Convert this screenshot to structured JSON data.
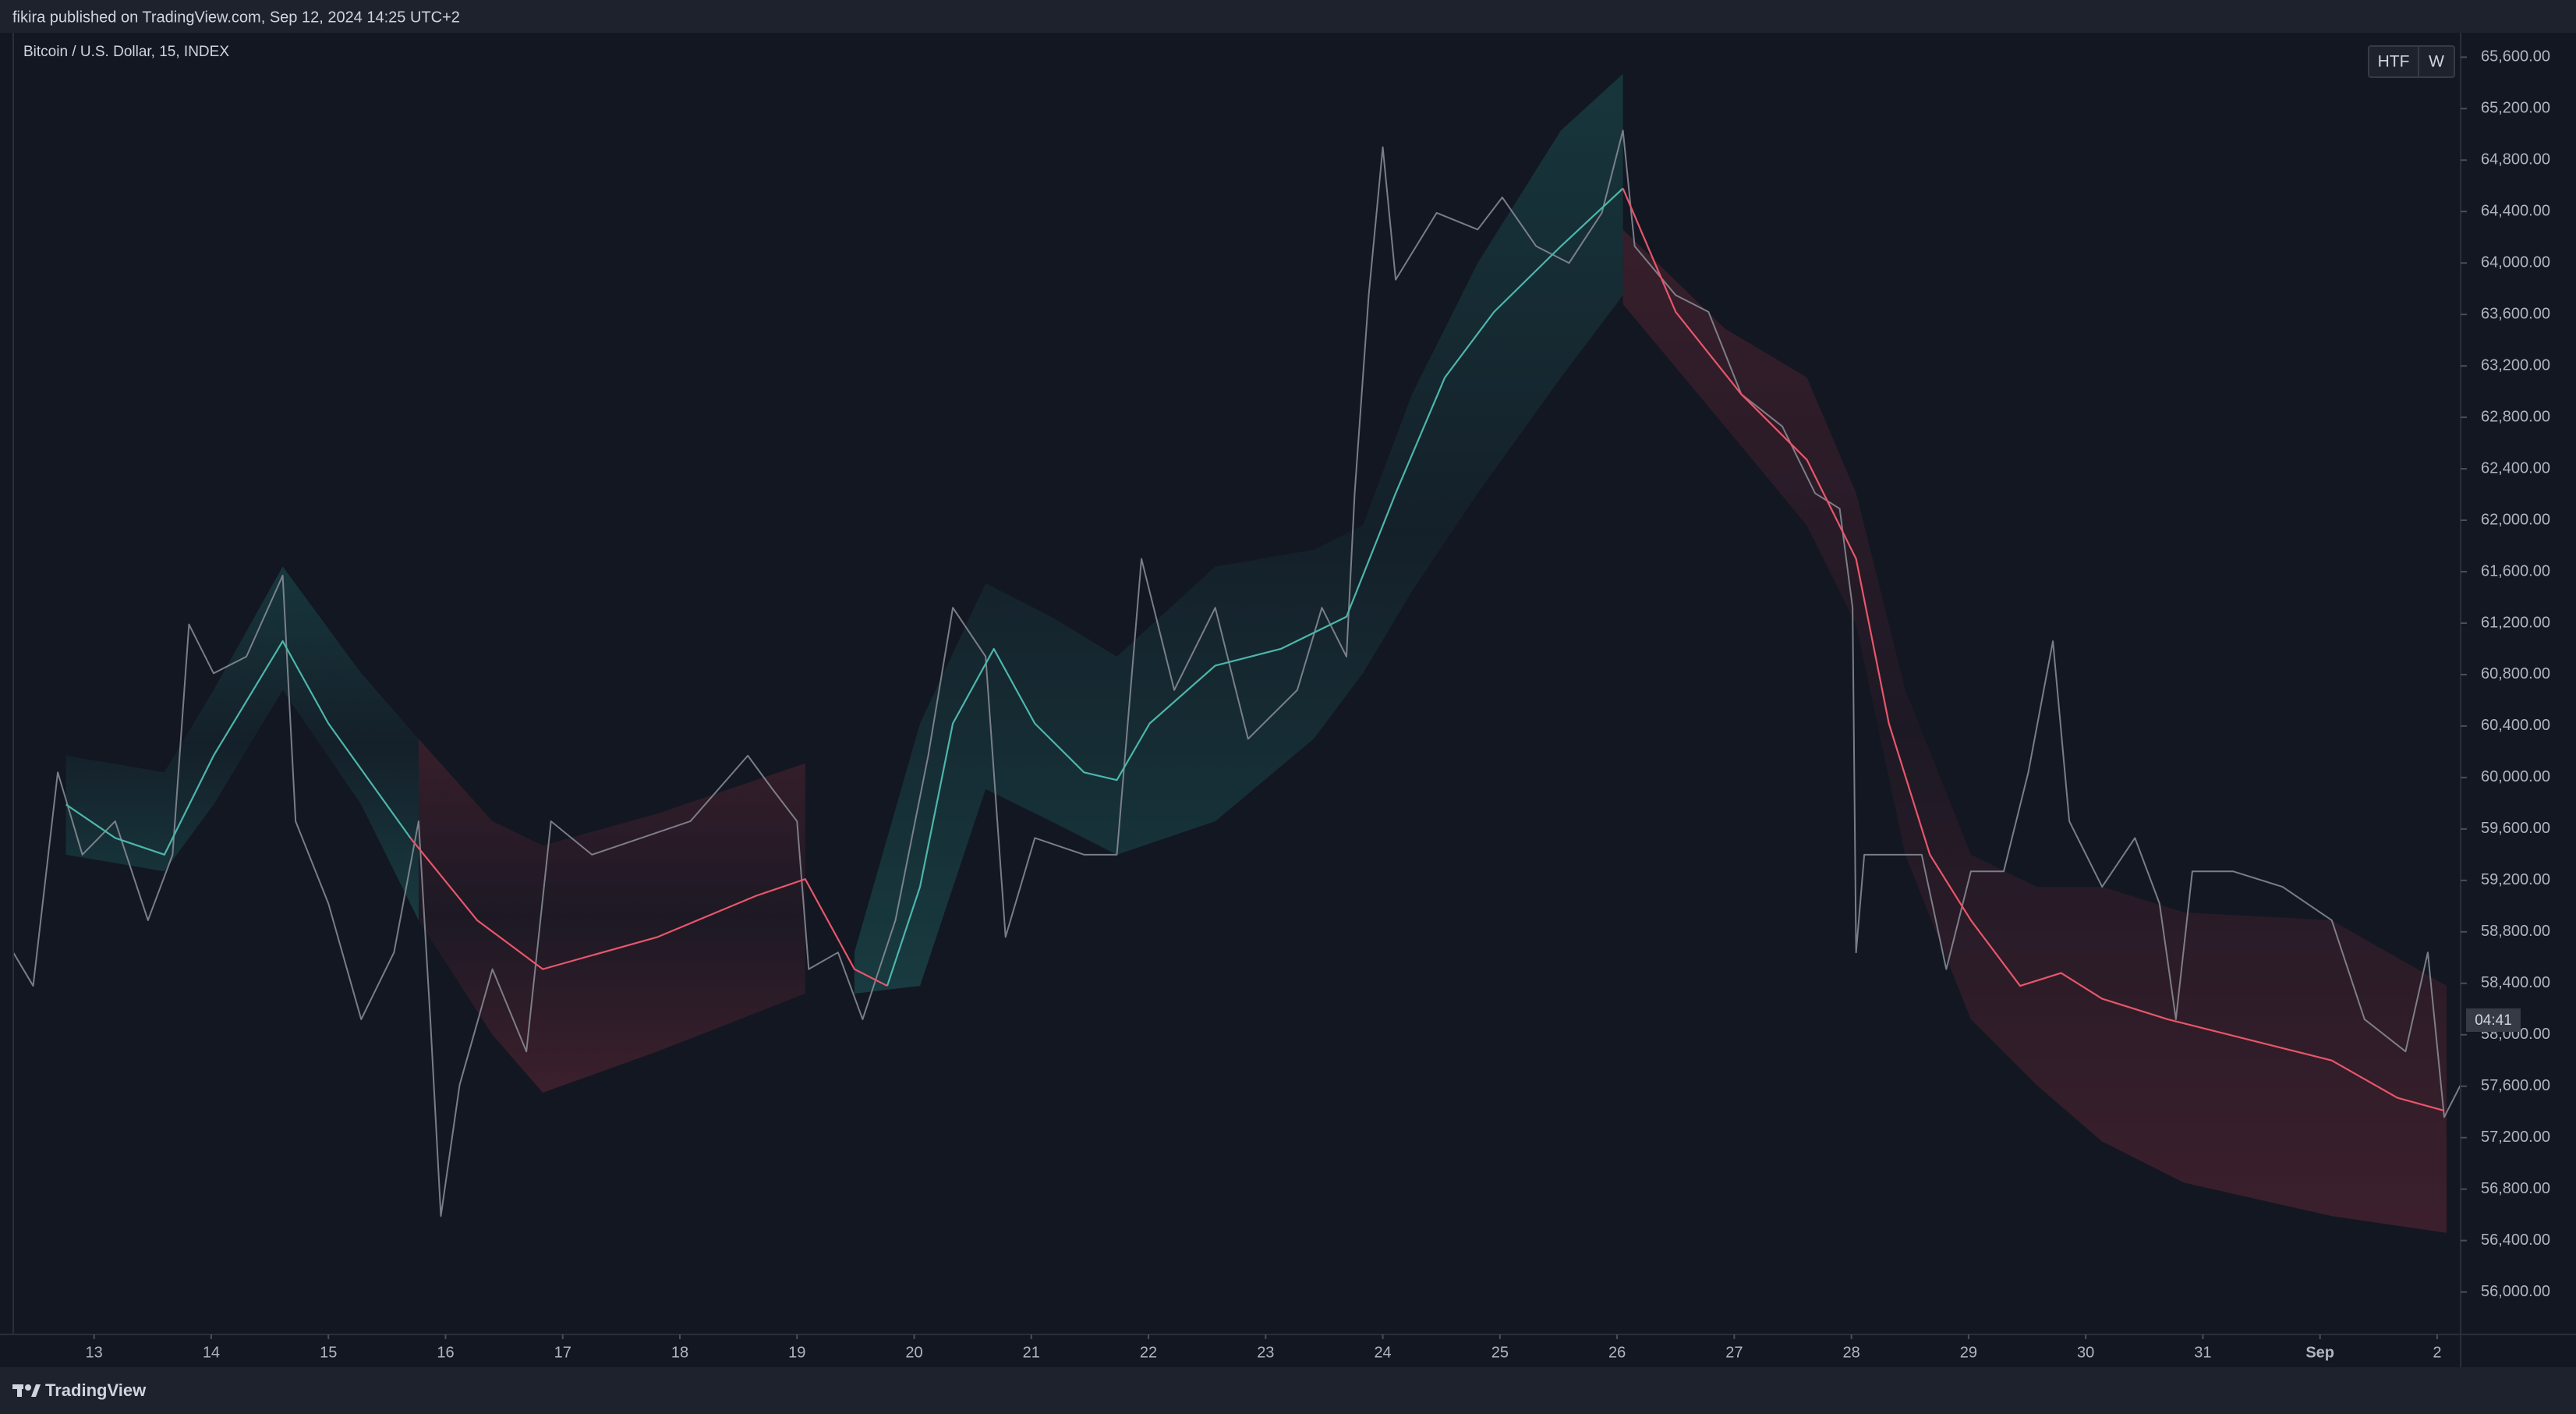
{
  "header": {
    "publisher": "fikira published on TradingView.com, Sep 12, 2024 14:25 UTC+2"
  },
  "chart_data": {
    "type": "line",
    "title": "Bitcoin / U.S. Dollar, 15, INDEX",
    "buttons": [
      "HTF",
      "W"
    ],
    "countdown": "04:41",
    "xlim": [
      -0.69,
      20.2
    ],
    "ylim": [
      55670,
      65790
    ],
    "xticks": [
      {
        "value": 0,
        "label": "13"
      },
      {
        "value": 1,
        "label": "14"
      },
      {
        "value": 2,
        "label": "15"
      },
      {
        "value": 3,
        "label": "16"
      },
      {
        "value": 4,
        "label": "17"
      },
      {
        "value": 5,
        "label": "18"
      },
      {
        "value": 6,
        "label": "19"
      },
      {
        "value": 7,
        "label": "20"
      },
      {
        "value": 8,
        "label": "21"
      },
      {
        "value": 9,
        "label": "22"
      },
      {
        "value": 10,
        "label": "23"
      },
      {
        "value": 11,
        "label": "24"
      },
      {
        "value": 12,
        "label": "25"
      },
      {
        "value": 13,
        "label": "26"
      },
      {
        "value": 14,
        "label": "27"
      },
      {
        "value": 15,
        "label": "28"
      },
      {
        "value": 16,
        "label": "29"
      },
      {
        "value": 17,
        "label": "30"
      },
      {
        "value": 18,
        "label": "31"
      },
      {
        "value": 19,
        "label": "Sep"
      },
      {
        "value": 20,
        "label": "2"
      }
    ],
    "yticks": [
      {
        "value": 56000,
        "label": "56,000.00"
      },
      {
        "value": 56400,
        "label": "56,400.00"
      },
      {
        "value": 56800,
        "label": "56,800.00"
      },
      {
        "value": 57200,
        "label": "57,200.00"
      },
      {
        "value": 57600,
        "label": "57,600.00"
      },
      {
        "value": 58000,
        "label": "58,000.00"
      },
      {
        "value": 58400,
        "label": "58,400.00"
      },
      {
        "value": 58800,
        "label": "58,800.00"
      },
      {
        "value": 59200,
        "label": "59,200.00"
      },
      {
        "value": 59600,
        "label": "59,600.00"
      },
      {
        "value": 60000,
        "label": "60,000.00"
      },
      {
        "value": 60400,
        "label": "60,400.00"
      },
      {
        "value": 60800,
        "label": "60,800.00"
      },
      {
        "value": 61200,
        "label": "61,200.00"
      },
      {
        "value": 61600,
        "label": "61,600.00"
      },
      {
        "value": 62000,
        "label": "62,000.00"
      },
      {
        "value": 62400,
        "label": "62,400.00"
      },
      {
        "value": 62800,
        "label": "62,800.00"
      },
      {
        "value": 63200,
        "label": "63,200.00"
      },
      {
        "value": 63600,
        "label": "63,600.00"
      },
      {
        "value": 64000,
        "label": "64,000.00"
      },
      {
        "value": 64400,
        "label": "64,400.00"
      },
      {
        "value": 64800,
        "label": "64,800.00"
      },
      {
        "value": 65200,
        "label": "65,200.00"
      },
      {
        "value": 65600,
        "label": "65,600.00"
      }
    ],
    "series": [
      {
        "color": "#8c8f99",
        "x": [
          -0.69,
          -0.52,
          -0.31,
          -0.1,
          0.18,
          0.46,
          0.67,
          0.81,
          1.02,
          1.3,
          1.61,
          1.72,
          2.0,
          2.28,
          2.56,
          2.77,
          2.87,
          2.96,
          3.12,
          3.4,
          3.69,
          3.9,
          4.25,
          4.67,
          5.09,
          5.58,
          5.79,
          6.0,
          6.1,
          6.35,
          6.56,
          6.84,
          7.12,
          7.33,
          7.61,
          7.78,
          8.03,
          8.45,
          8.73,
          8.94,
          9.22,
          9.57,
          9.85,
          10.27,
          10.48,
          10.69,
          10.76,
          10.88,
          11.0,
          11.11,
          11.46,
          11.81,
          12.02,
          12.31,
          12.59,
          12.87,
          13.05,
          13.15,
          13.5,
          13.78,
          14.06,
          14.41,
          14.69,
          14.9,
          15.01,
          15.04,
          15.11,
          15.39,
          15.6,
          15.81,
          16.02,
          16.3,
          16.51,
          16.72,
          16.86,
          17.14,
          17.42,
          17.63,
          17.77,
          17.91,
          18.26,
          18.68,
          19.1,
          19.38,
          19.73,
          19.92,
          20.06,
          20.2
        ],
        "values": [
          58640,
          58380,
          60040,
          59400,
          59660,
          58890,
          59400,
          61190,
          60810,
          60940,
          61570,
          59660,
          59020,
          58120,
          58640,
          59660,
          58120,
          56590,
          57610,
          58510,
          57870,
          59660,
          59400,
          59530,
          59660,
          60170,
          59910,
          59660,
          58510,
          58640,
          58120,
          58890,
          60170,
          61320,
          60940,
          58760,
          59530,
          59400,
          59400,
          61700,
          60680,
          61320,
          60300,
          60680,
          61320,
          60940,
          62210,
          63750,
          64900,
          63870,
          64390,
          64260,
          64510,
          64130,
          64000,
          64390,
          65030,
          64130,
          63750,
          63620,
          62980,
          62730,
          62210,
          62090,
          61320,
          58640,
          59400,
          59400,
          59400,
          58510,
          59270,
          59270,
          60040,
          61060,
          59660,
          59150,
          59530,
          59020,
          58120,
          59270,
          59270,
          59150,
          58890,
          58120,
          57870,
          58640,
          57360,
          57610
        ]
      },
      {
        "color": "#4db6ac",
        "x": [
          -0.24,
          0.18,
          0.6,
          1.02,
          1.61,
          2.0,
          2.7,
          null,
          6.77,
          7.05,
          7.33,
          7.68,
          8.03,
          8.45,
          8.73,
          9.01,
          9.57,
          10.13,
          10.69,
          11.11,
          11.53,
          11.95,
          12.52,
          13.05
        ],
        "values": [
          59790,
          59530,
          59400,
          60170,
          61060,
          60420,
          59530,
          null,
          58380,
          59150,
          60420,
          61000,
          60420,
          60040,
          59980,
          60420,
          60870,
          61000,
          61250,
          62210,
          63110,
          63620,
          64130,
          64580
        ]
      },
      {
        "color": "#e8566a",
        "x": [
          2.7,
          3.27,
          3.83,
          4.81,
          5.65,
          6.07,
          6.49,
          6.77,
          null,
          13.05,
          13.5,
          14.06,
          14.62,
          15.04,
          15.32,
          15.67,
          16.02,
          16.44,
          16.79,
          17.14,
          17.7,
          19.1,
          19.66,
          20.06
        ],
        "values": [
          59530,
          58890,
          58510,
          58760,
          59080,
          59210,
          58510,
          58380,
          null,
          64580,
          63620,
          62980,
          62470,
          61700,
          60420,
          59400,
          58890,
          58380,
          58480,
          58280,
          58120,
          57800,
          57510,
          57410
        ]
      }
    ],
    "bands": [
      {
        "color": "#26a69a",
        "x": [
          -0.24,
          0.6,
          1.02,
          1.61,
          2.28,
          2.77
        ],
        "upper": [
          60170,
          60040,
          60680,
          61640,
          60810,
          60300
        ],
        "lower": [
          59400,
          59270,
          59790,
          60680,
          59790,
          58890
        ]
      },
      {
        "color": "#b8384a",
        "x": [
          2.77,
          3.4,
          3.83,
          4.81,
          6.07
        ],
        "upper": [
          60300,
          59660,
          59470,
          59720,
          60110
        ],
        "lower": [
          58890,
          58000,
          57550,
          57870,
          58320
        ]
      },
      {
        "color": "#26a69a",
        "x": [
          6.49,
          7.05,
          7.61,
          8.17,
          8.73,
          9.57,
          10.41,
          10.83,
          11.25,
          11.81,
          12.52,
          13.05
        ],
        "upper": [
          58640,
          60420,
          61510,
          61250,
          60940,
          61640,
          61770,
          61960,
          62980,
          64000,
          65030,
          65470
        ],
        "lower": [
          58320,
          58380,
          59910,
          59660,
          59400,
          59660,
          60300,
          60810,
          61450,
          62210,
          63110,
          63750
        ]
      },
      {
        "color": "#b8384a",
        "x": [
          13.05,
          13.92,
          14.62,
          15.04,
          15.46,
          16.02,
          16.58,
          17.14,
          17.84,
          19.1,
          20.08
        ],
        "upper": [
          64260,
          63490,
          63110,
          62210,
          60680,
          59400,
          59150,
          59150,
          58950,
          58890,
          58380
        ],
        "lower": [
          63680,
          62730,
          61960,
          61190,
          59400,
          58120,
          57610,
          57170,
          56850,
          56590,
          56460
        ]
      }
    ]
  },
  "footer": {
    "brand": "TradingView"
  }
}
